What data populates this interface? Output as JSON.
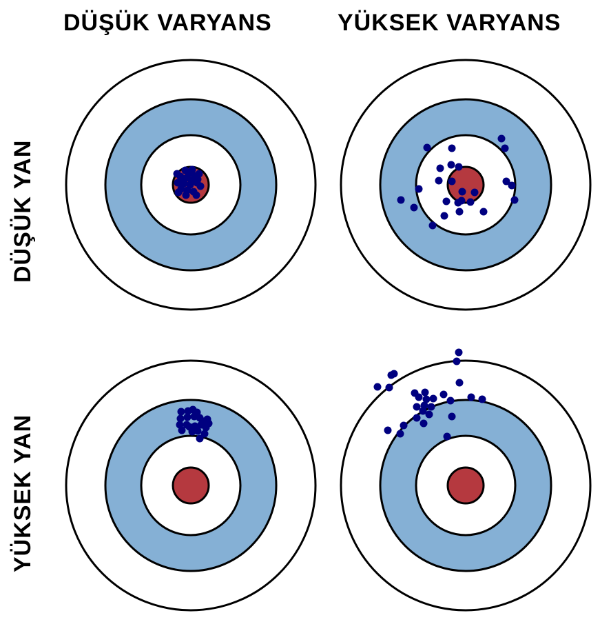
{
  "headers": {
    "col_low_variance": "DÜŞÜK VARYANS",
    "col_high_variance": "YÜKSEK VARYANS",
    "row_low_bias": "DÜŞÜK YAN",
    "row_high_bias": "YÜKSEK YAN"
  },
  "colors": {
    "ring_white": "#ffffff",
    "ring_blue": "#85b0d5",
    "bullseye": "#b5393f",
    "stroke": "#000000",
    "dots": "#000080"
  },
  "panels": [
    {
      "id": "low-bias-low-variance",
      "points": [
        [
          -8,
          -21
        ],
        [
          2,
          -22
        ],
        [
          -15,
          -12
        ],
        [
          -6,
          -10
        ],
        [
          6,
          -13
        ],
        [
          -19,
          -3
        ],
        [
          -10,
          -2
        ],
        [
          -1,
          0
        ],
        [
          9,
          -3
        ],
        [
          14,
          2
        ],
        [
          -14,
          6
        ],
        [
          -5,
          8
        ],
        [
          4,
          10
        ],
        [
          -18,
          11
        ],
        [
          -7,
          15
        ],
        [
          8,
          15
        ],
        [
          -12,
          -8
        ],
        [
          1,
          -7
        ],
        [
          10,
          -8
        ],
        [
          -3,
          -17
        ],
        [
          12,
          -16
        ],
        [
          -20,
          -16
        ]
      ]
    },
    {
      "id": "low-bias-high-variance",
      "points": [
        [
          -56,
          -54
        ],
        [
          -20,
          -53
        ],
        [
          52,
          -67
        ],
        [
          57,
          -53
        ],
        [
          -37,
          -24
        ],
        [
          -21,
          -29
        ],
        [
          -10,
          -26
        ],
        [
          -39,
          -6
        ],
        [
          -20,
          -5
        ],
        [
          59,
          -5
        ],
        [
          67,
          1
        ],
        [
          -68,
          6
        ],
        [
          -5,
          10
        ],
        [
          13,
          11
        ],
        [
          -94,
          22
        ],
        [
          -28,
          24
        ],
        [
          -6,
          23
        ],
        [
          -11,
          26
        ],
        [
          7,
          25
        ],
        [
          71,
          22
        ],
        [
          -75,
          33
        ],
        [
          -9,
          39
        ],
        [
          26,
          39
        ],
        [
          -31,
          45
        ],
        [
          -48,
          59
        ]
      ]
    },
    {
      "id": "high-bias-low-variance",
      "points": [
        [
          -14,
          -107
        ],
        [
          -4,
          -108
        ],
        [
          3,
          -110
        ],
        [
          9,
          -106
        ],
        [
          -15,
          -97
        ],
        [
          -5,
          -99
        ],
        [
          5,
          -100
        ],
        [
          13,
          -98
        ],
        [
          19,
          -93
        ],
        [
          26,
          -90
        ],
        [
          -16,
          -88
        ],
        [
          -6,
          -88
        ],
        [
          6,
          -86
        ],
        [
          15,
          -88
        ],
        [
          22,
          -84
        ],
        [
          -13,
          -80
        ],
        [
          2,
          -78
        ],
        [
          10,
          -79
        ],
        [
          20,
          -75
        ],
        [
          13,
          -68
        ],
        [
          -2,
          -85
        ],
        [
          24,
          -96
        ]
      ]
    },
    {
      "id": "high-bias-high-variance",
      "points": [
        [
          -10,
          -193
        ],
        [
          -13,
          -180
        ],
        [
          -104,
          -162
        ],
        [
          -108,
          -160
        ],
        [
          -9,
          -149
        ],
        [
          -128,
          -143
        ],
        [
          -111,
          -142
        ],
        [
          -59,
          -135
        ],
        [
          -74,
          -134
        ],
        [
          -68,
          -128
        ],
        [
          -32,
          -132
        ],
        [
          -57,
          -125
        ],
        [
          -47,
          -126
        ],
        [
          -22,
          -123
        ],
        [
          8,
          -128
        ],
        [
          24,
          -125
        ],
        [
          -71,
          -114
        ],
        [
          -60,
          -116
        ],
        [
          -50,
          -114
        ],
        [
          -62,
          -108
        ],
        [
          -53,
          -103
        ],
        [
          -71,
          -98
        ],
        [
          -20,
          -100
        ],
        [
          -90,
          -87
        ],
        [
          -61,
          -90
        ],
        [
          -113,
          -80
        ],
        [
          -95,
          -75
        ],
        [
          -27,
          -71
        ]
      ]
    }
  ]
}
